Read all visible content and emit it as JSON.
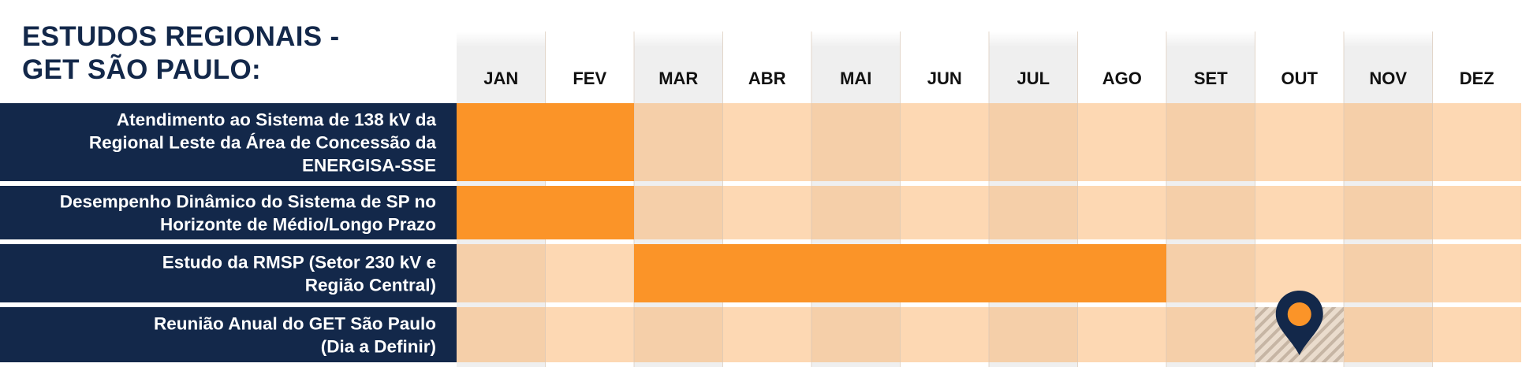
{
  "title_lines": [
    "ESTUDOS REGIONAIS -",
    "GET SÃO PAULO:"
  ],
  "colors": {
    "navy": "#13284a",
    "orange": "#fb9428",
    "light_orange": "#fdd8b3",
    "mid_orange": "#f5cfa9",
    "month_band": "#efefef",
    "hatch": "#c6b5a4"
  },
  "chart_data": {
    "type": "gantt",
    "title": "ESTUDOS REGIONAIS - GET SÃO PAULO:",
    "months": [
      "JAN",
      "FEV",
      "MAR",
      "ABR",
      "MAI",
      "JUN",
      "JUL",
      "AGO",
      "SET",
      "OUT",
      "NOV",
      "DEZ"
    ],
    "tasks": [
      {
        "label_lines": [
          "Atendimento ao Sistema de 138 kV da",
          "Regional Leste da Área de Concessão da",
          "ENERGISA-SSE"
        ],
        "start_month": 1,
        "end_month": 2
      },
      {
        "label_lines": [
          "Desempenho Dinâmico do Sistema de SP no",
          "Horizonte de Médio/Longo Prazo"
        ],
        "start_month": 1,
        "end_month": 2
      },
      {
        "label_lines": [
          "Estudo da RMSP (Setor 230 kV e",
          "Região Central)"
        ],
        "start_month": 3,
        "end_month": 8
      },
      {
        "label_lines": [
          "Reunião Anual do GET São Paulo",
          "(Dia a Definir)"
        ],
        "milestone_month": 10,
        "marker": "location-pin-icon"
      }
    ]
  }
}
